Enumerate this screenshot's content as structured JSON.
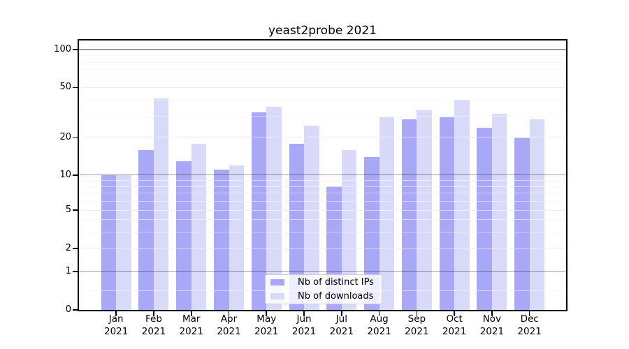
{
  "title": "yeast2probe 2021",
  "chart_data": {
    "type": "bar",
    "title": "yeast2probe 2021",
    "categories": [
      "Jan",
      "Feb",
      "Mar",
      "Apr",
      "May",
      "Jun",
      "Jul",
      "Aug",
      "Sep",
      "Oct",
      "Nov",
      "Dec"
    ],
    "year": "2021",
    "series": [
      {
        "name": "Nb of distinct IPs",
        "color": "#a8a8f6",
        "values": [
          10,
          16,
          13,
          11,
          32,
          18,
          8,
          14,
          28,
          29,
          24,
          20
        ]
      },
      {
        "name": "Nb of downloads",
        "color": "#d9d9f9",
        "values": [
          10,
          41,
          18,
          12,
          35,
          25,
          16,
          29,
          33,
          40,
          31,
          28
        ]
      }
    ],
    "xlabel": "",
    "ylabel": "",
    "y_scale": "symlog",
    "y_tick_labels": [
      "100",
      "50",
      "20",
      "10",
      "5",
      "2",
      "1",
      "0"
    ],
    "y_tick_values": [
      100,
      50,
      20,
      10,
      5,
      2,
      1,
      0
    ],
    "ylim": [
      0,
      118
    ],
    "grid": true,
    "legend_position": "lower center",
    "colors": {
      "bar_distinct_ips": "#a8a8f6",
      "bar_downloads": "#d9d9f9",
      "grid_major": "#9e9e9e",
      "grid_light": "#e3e3e3",
      "grid_minor": "#efefef",
      "axis": "#000000"
    }
  }
}
